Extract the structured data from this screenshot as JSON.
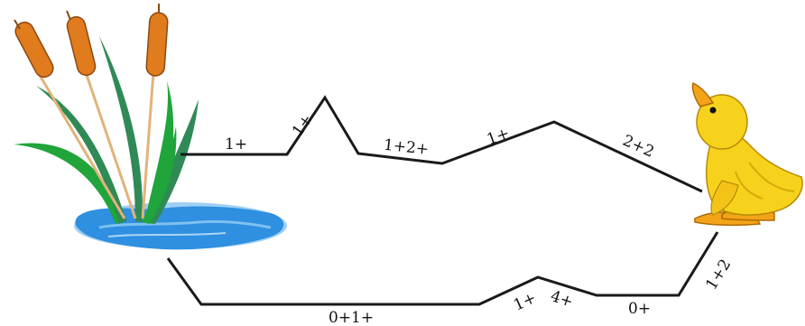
{
  "diagram": {
    "upper_path_labels": [
      "1+",
      "1+",
      "1+2+",
      "1+",
      "2+2"
    ],
    "lower_path_labels": [
      "0+1+",
      "1+",
      "4+",
      "0+",
      "1+2"
    ]
  },
  "icons": {
    "start": "pond-with-cattails-icon",
    "end": "duckling-icon"
  },
  "colors": {
    "path": "#1a1a1a",
    "water": "#2f8fe0",
    "cattail": "#e07b1e",
    "leaf_dark": "#2f8a55",
    "leaf_light": "#1fa53a",
    "duck": "#f7d21c",
    "duck_beak": "#f2a318"
  }
}
